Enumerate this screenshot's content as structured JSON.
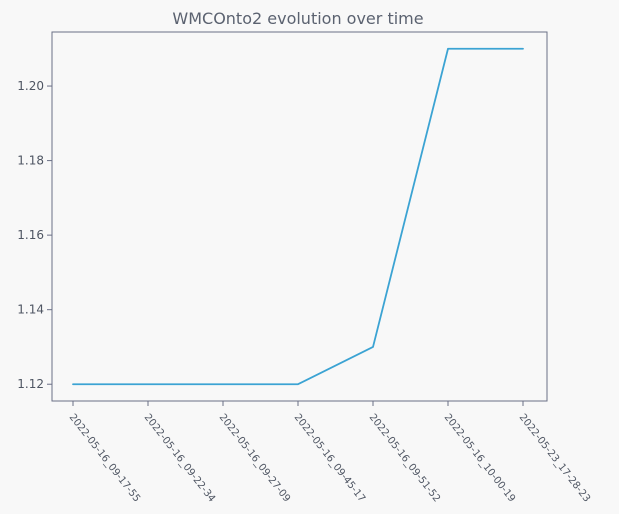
{
  "chart_data": {
    "type": "line",
    "title": "WMCOnto2 evolution over time",
    "xlabel": "",
    "ylabel": "",
    "x": [
      "2022-05-16_09-17-55",
      "2022-05-16_09-22-34",
      "2022-05-16_09-27-09",
      "2022-05-16_09-45-17",
      "2022-05-16_09-51-52",
      "2022-05-16_10-00-19",
      "2022-05-23_17-28-23"
    ],
    "series": [
      {
        "values": [
          1.12,
          1.12,
          1.12,
          1.12,
          1.13,
          1.21,
          1.21
        ]
      }
    ],
    "yticks": [
      1.12,
      1.14,
      1.16,
      1.18,
      1.2
    ],
    "ytick_labels": [
      "1.12",
      "1.14",
      "1.16",
      "1.18",
      "1.20"
    ],
    "ylim": [
      1.1155,
      1.2145
    ],
    "grid": false,
    "colors": {
      "background": "#f8f8f8",
      "plot_background": "#f8f8f8",
      "axis": "#6a6f86",
      "line": "#3ba3d3",
      "text": "#4f5663"
    }
  }
}
